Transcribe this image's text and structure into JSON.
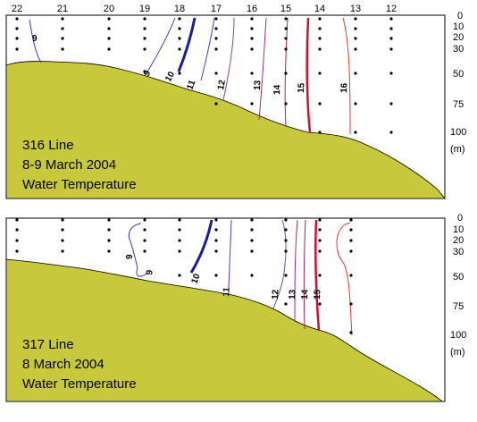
{
  "stations": [
    "22",
    "21",
    "20",
    "19",
    "18",
    "17",
    "16",
    "15",
    "14",
    "13",
    "12"
  ],
  "depth_ticks": [
    "0",
    "10",
    "20",
    "30",
    "50",
    "75",
    "100"
  ],
  "depth_unit": "(m)",
  "colors": {
    "seabed": "#c8c83c",
    "cold_strong": "#1a1aa0",
    "cold": "#3a3ab4",
    "mid": "#7a4aa0",
    "warm": "#b02050",
    "warm_strong": "#d01030",
    "warmest": "#d84030"
  },
  "panel1": {
    "line": "316 Line",
    "date": "8-9 March 2004",
    "variable": "Water Temperature",
    "isotherms": [
      "9",
      "9",
      "10",
      "11",
      "12",
      "13",
      "14",
      "15",
      "16"
    ]
  },
  "panel2": {
    "line": "317 Line",
    "date": "8 March 2004",
    "variable": "Water Temperature",
    "isotherms": [
      "9",
      "9",
      "10",
      "11",
      "12",
      "13",
      "14",
      "15"
    ]
  }
}
